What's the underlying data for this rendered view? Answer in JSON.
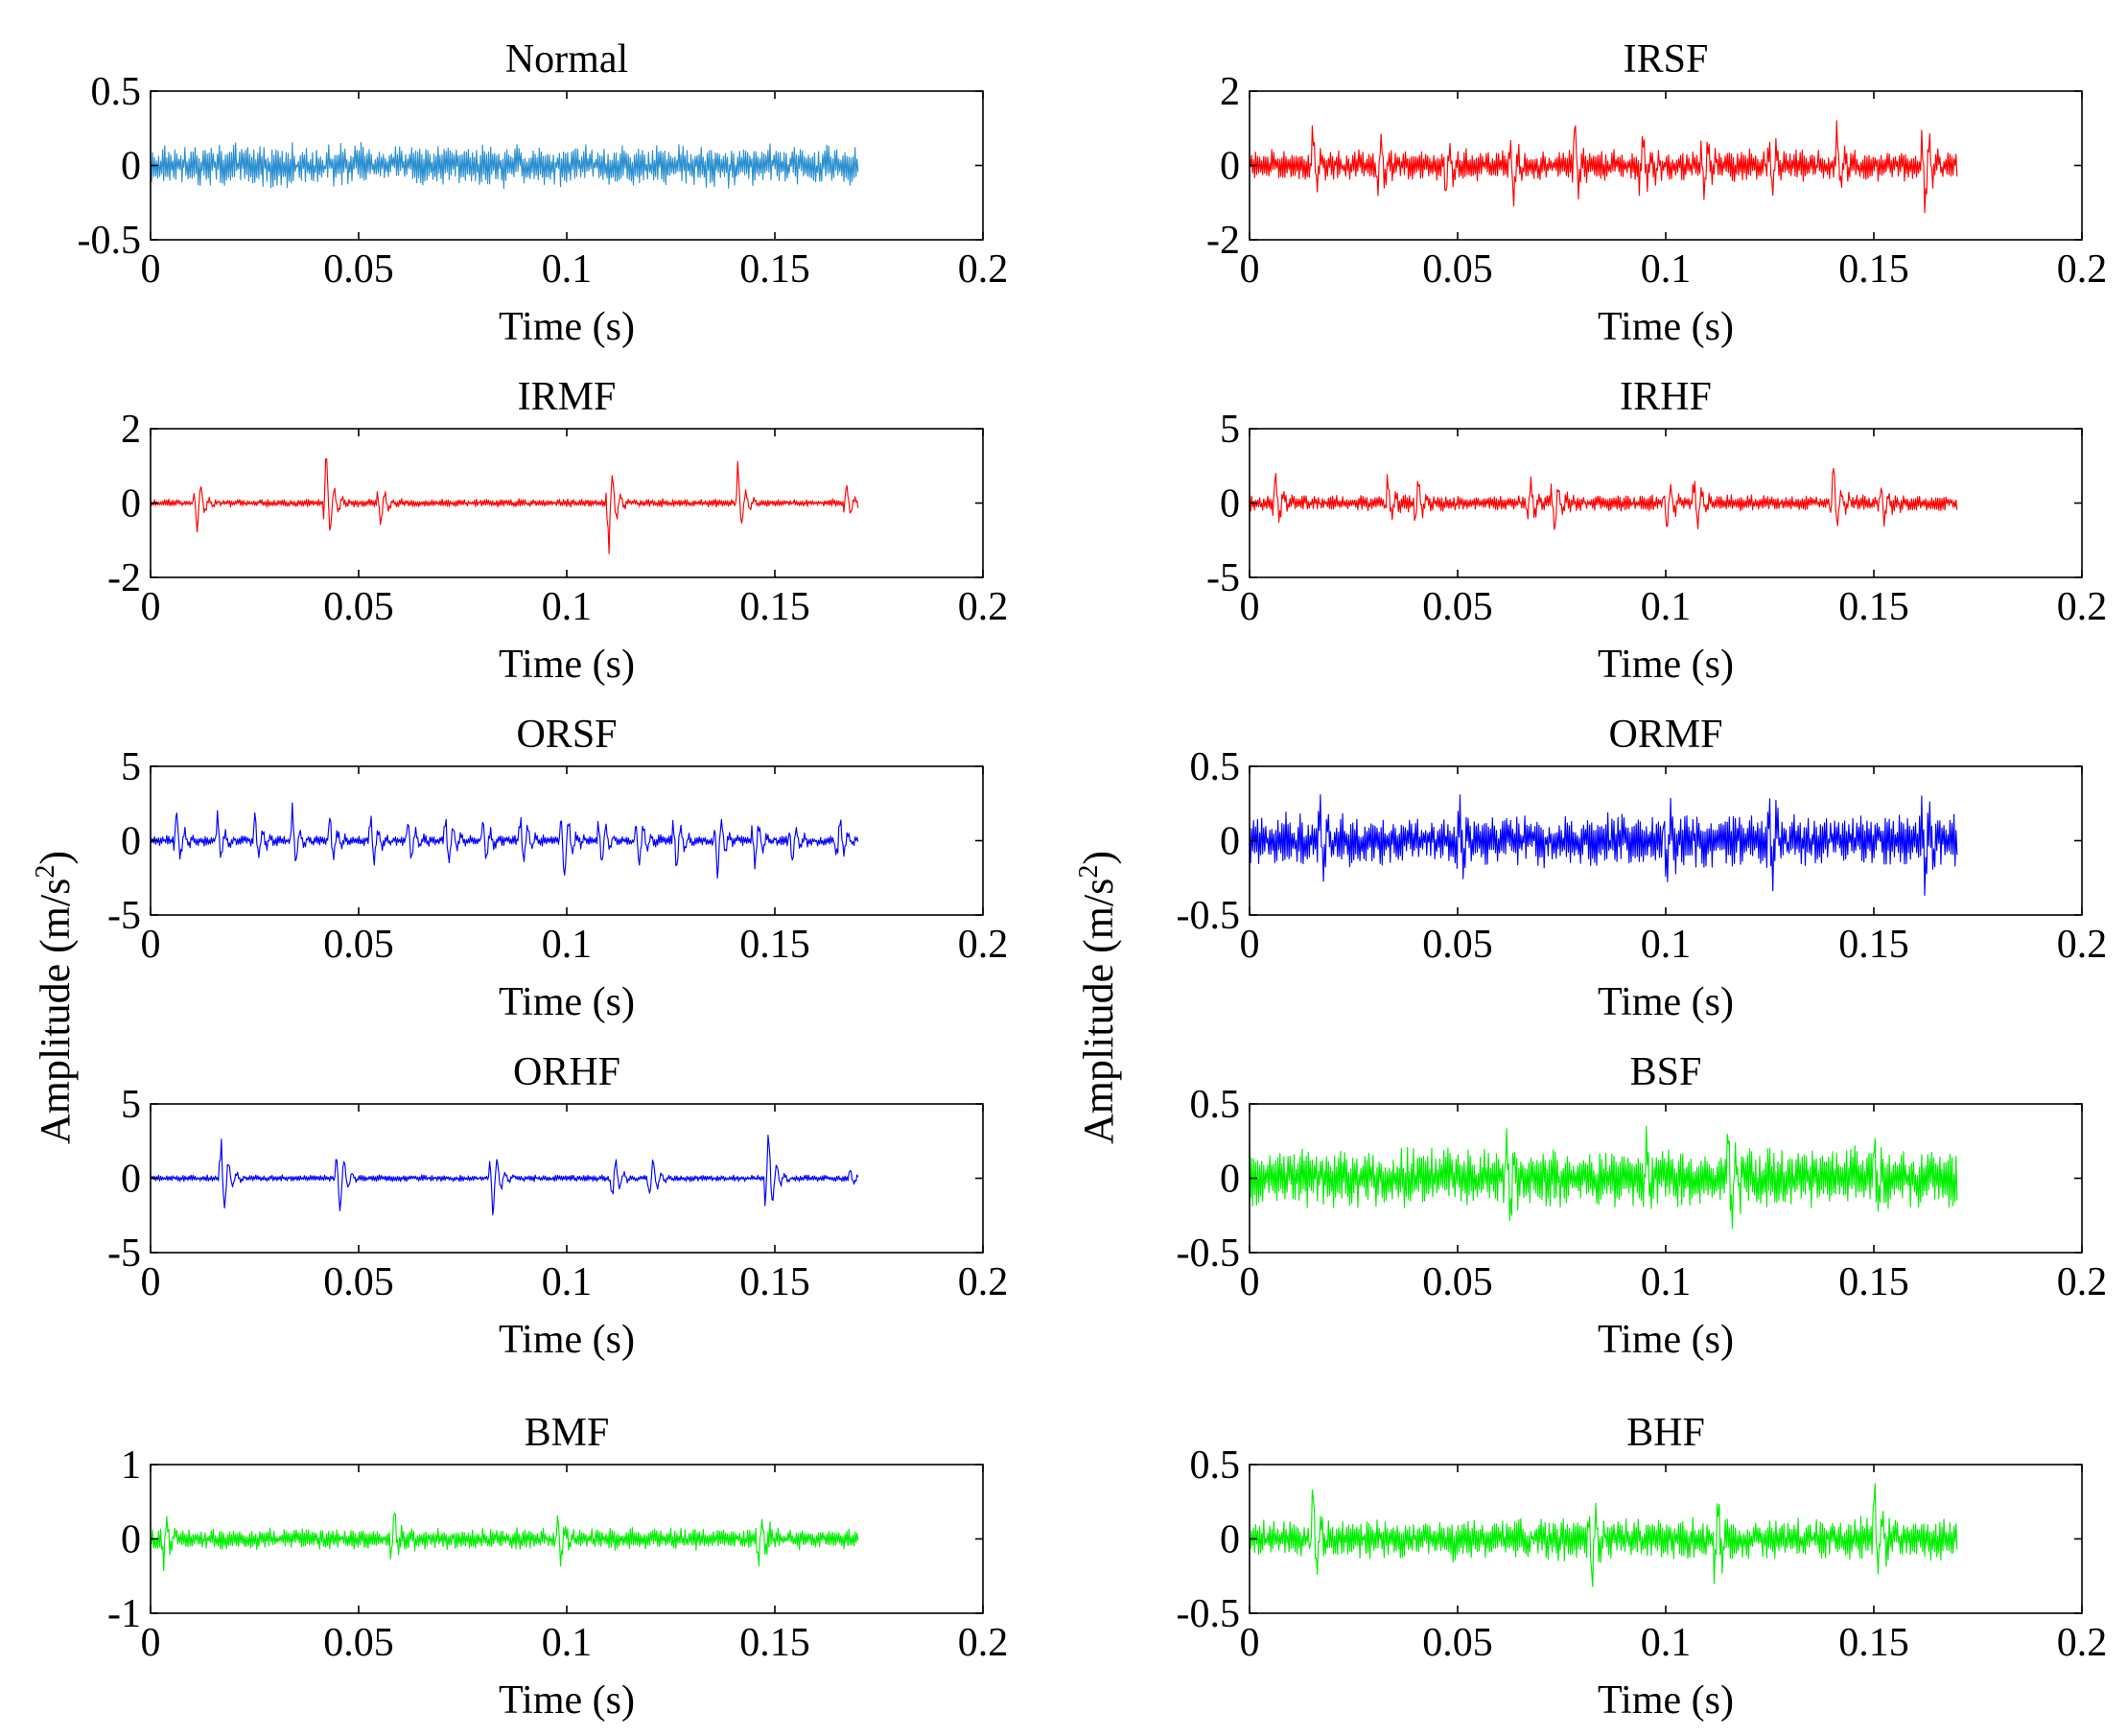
{
  "ylabel": "Amplitude (m/s",
  "ylabel_sup": "2",
  "ylabel_close": ")",
  "chart_data": [
    {
      "type": "line",
      "title": "Normal",
      "xlabel": "Time (s)",
      "xlim": [
        0,
        0.2
      ],
      "ylim": [
        -0.5,
        0.5
      ],
      "xticks": [
        "0",
        "0.05",
        "0.1",
        "0.15",
        "0.2"
      ],
      "yticks": [
        "0.5",
        "0",
        "-0.5"
      ],
      "yticks_values": [
        0.5,
        0,
        -0.5
      ],
      "color": "#2a8fd0",
      "signal": {
        "duration": 0.17,
        "samples": 700,
        "noise": 0.12,
        "impulses": []
      }
    },
    {
      "type": "line",
      "title": "IRSF",
      "xlabel": "Time (s)",
      "xlim": [
        0,
        0.2
      ],
      "ylim": [
        -2,
        2
      ],
      "xticks": [
        "0",
        "0.05",
        "0.1",
        "0.15",
        "0.2"
      ],
      "yticks": [
        "2",
        "0",
        "-2"
      ],
      "yticks_values": [
        2,
        0,
        -2
      ],
      "color": "#ff0000",
      "signal": {
        "duration": 0.17,
        "samples": 700,
        "noise": 0.35,
        "impulses": [
          [
            0.015,
            1.1
          ],
          [
            0.031,
            1.1
          ],
          [
            0.047,
            1.2
          ],
          [
            0.063,
            1.3
          ],
          [
            0.078,
            1.4
          ],
          [
            0.094,
            1.1
          ],
          [
            0.109,
            1.3
          ],
          [
            0.125,
            1.2
          ],
          [
            0.141,
            1.2
          ],
          [
            0.162,
            1.6
          ]
        ]
      }
    },
    {
      "type": "line",
      "title": "IRMF",
      "xlabel": "Time (s)",
      "xlim": [
        0,
        0.2
      ],
      "ylim": [
        -2,
        2
      ],
      "xticks": [
        "0",
        "0.05",
        "0.1",
        "0.15",
        "0.2"
      ],
      "yticks": [
        "2",
        "0",
        "-2"
      ],
      "yticks_values": [
        2,
        0,
        -2
      ],
      "color": "#ff0000",
      "signal": {
        "duration": 0.17,
        "samples": 700,
        "noise": 0.09,
        "impulses": [
          [
            0.011,
            1.0
          ],
          [
            0.042,
            1.6
          ],
          [
            0.055,
            0.7
          ],
          [
            0.11,
            1.6
          ],
          [
            0.141,
            1.1
          ],
          [
            0.167,
            0.6
          ]
        ]
      }
    },
    {
      "type": "line",
      "title": "IRHF",
      "xlabel": "Time (s)",
      "xlim": [
        0,
        0.2
      ],
      "ylim": [
        -5,
        5
      ],
      "xticks": [
        "0",
        "0.05",
        "0.1",
        "0.15",
        "0.2"
      ],
      "yticks": [
        "5",
        "0",
        "-5"
      ],
      "yticks_values": [
        5,
        0,
        -5
      ],
      "color": "#ff0000",
      "signal": {
        "duration": 0.17,
        "samples": 700,
        "noise": 0.45,
        "impulses": [
          [
            0.006,
            2.5
          ],
          [
            0.033,
            2.0
          ],
          [
            0.04,
            2.5
          ],
          [
            0.067,
            2.2
          ],
          [
            0.073,
            2.6
          ],
          [
            0.1,
            2.2
          ],
          [
            0.107,
            2.4
          ],
          [
            0.14,
            3.6
          ],
          [
            0.152,
            2.0
          ]
        ]
      }
    },
    {
      "type": "line",
      "title": "ORSF",
      "xlabel": "Time (s)",
      "xlim": [
        0,
        0.2
      ],
      "ylim": [
        -5,
        5
      ],
      "xticks": [
        "0",
        "0.05",
        "0.1",
        "0.15",
        "0.2"
      ],
      "yticks": [
        "5",
        "0",
        "-5"
      ],
      "yticks_values": [
        5,
        0,
        -5
      ],
      "color": "#0000ff",
      "signal": {
        "duration": 0.17,
        "samples": 700,
        "noise": 0.3,
        "impulses": [
          [
            0.006,
            2.5
          ],
          [
            0.016,
            2.0
          ],
          [
            0.025,
            2.4
          ],
          [
            0.034,
            2.6
          ],
          [
            0.043,
            2.2
          ],
          [
            0.053,
            2.5
          ],
          [
            0.062,
            2.3
          ],
          [
            0.071,
            2.5
          ],
          [
            0.08,
            2.0
          ],
          [
            0.089,
            2.6
          ],
          [
            0.099,
            3.6
          ],
          [
            0.108,
            2.4
          ],
          [
            0.117,
            2.5
          ],
          [
            0.126,
            2.5
          ],
          [
            0.136,
            3.0
          ],
          [
            0.145,
            2.4
          ],
          [
            0.154,
            2.0
          ],
          [
            0.165,
            2.2
          ]
        ]
      }
    },
    {
      "type": "line",
      "title": "ORMF",
      "xlabel": "Time (s)",
      "xlim": [
        0,
        0.2
      ],
      "ylim": [
        -0.5,
        0.5
      ],
      "xticks": [
        "0",
        "0.05",
        "0.1",
        "0.15",
        "0.2"
      ],
      "yticks": [
        "0.5",
        "0",
        "-0.5"
      ],
      "yticks_values": [
        0.5,
        0,
        -0.5
      ],
      "color": "#0000ff",
      "signal": {
        "duration": 0.17,
        "samples": 700,
        "noise": 0.15,
        "impulses": [
          [
            0.017,
            0.35
          ],
          [
            0.05,
            0.3
          ],
          [
            0.1,
            0.3
          ],
          [
            0.125,
            0.33
          ],
          [
            0.162,
            0.3
          ]
        ]
      }
    },
    {
      "type": "line",
      "title": "ORHF",
      "xlabel": "Time (s)",
      "xlim": [
        0,
        0.2
      ],
      "ylim": [
        -5,
        5
      ],
      "xticks": [
        "0",
        "0.05",
        "0.1",
        "0.15",
        "0.2"
      ],
      "yticks": [
        "5",
        "0",
        "-5"
      ],
      "yticks_values": [
        5,
        0,
        -5
      ],
      "color": "#0000ff",
      "signal": {
        "duration": 0.17,
        "samples": 700,
        "noise": 0.18,
        "impulses": [
          [
            0.017,
            3.6
          ],
          [
            0.045,
            3.2
          ],
          [
            0.082,
            3.0
          ],
          [
            0.111,
            2.0
          ],
          [
            0.12,
            2.0
          ],
          [
            0.148,
            4.5
          ],
          [
            0.168,
            0.8
          ]
        ]
      }
    },
    {
      "type": "line",
      "title": "BSF",
      "xlabel": "Time (s)",
      "xlim": [
        0,
        0.2
      ],
      "ylim": [
        -0.5,
        0.5
      ],
      "xticks": [
        "0",
        "0.05",
        "0.1",
        "0.15",
        "0.2"
      ],
      "yticks": [
        "0.5",
        "0",
        "-0.5"
      ],
      "yticks_values": [
        0.5,
        0,
        -0.5
      ],
      "color": "#00ee00",
      "signal": {
        "duration": 0.17,
        "samples": 700,
        "noise": 0.17,
        "impulses": [
          [
            0.062,
            0.45
          ],
          [
            0.095,
            0.32
          ],
          [
            0.115,
            0.47
          ],
          [
            0.15,
            0.3
          ]
        ]
      }
    },
    {
      "type": "line",
      "title": "BMF",
      "xlabel": "Time (s)",
      "xlim": [
        0,
        0.2
      ],
      "ylim": [
        -1,
        1
      ],
      "xticks": [
        "0",
        "0.05",
        "0.1",
        "0.15",
        "0.2"
      ],
      "yticks": [
        "1",
        "0",
        "-1"
      ],
      "yticks_values": [
        1,
        0,
        -1
      ],
      "color": "#00ee00",
      "signal": {
        "duration": 0.17,
        "samples": 700,
        "noise": 0.12,
        "impulses": [
          [
            0.003,
            0.45
          ],
          [
            0.058,
            0.55
          ],
          [
            0.098,
            0.45
          ],
          [
            0.146,
            0.5
          ]
        ]
      }
    },
    {
      "type": "line",
      "title": "BHF",
      "xlabel": "Time (s)",
      "xlim": [
        0,
        0.2
      ],
      "ylim": [
        -0.5,
        0.5
      ],
      "xticks": [
        "0",
        "0.05",
        "0.1",
        "0.15",
        "0.2"
      ],
      "yticks": [
        "0.5",
        "0",
        "-0.5"
      ],
      "yticks_values": [
        0.5,
        0,
        -0.5
      ],
      "color": "#00ee00",
      "signal": {
        "duration": 0.17,
        "samples": 700,
        "noise": 0.12,
        "impulses": [
          [
            0.015,
            0.4
          ],
          [
            0.082,
            0.45
          ],
          [
            0.112,
            0.35
          ],
          [
            0.15,
            0.4
          ]
        ]
      }
    }
  ]
}
